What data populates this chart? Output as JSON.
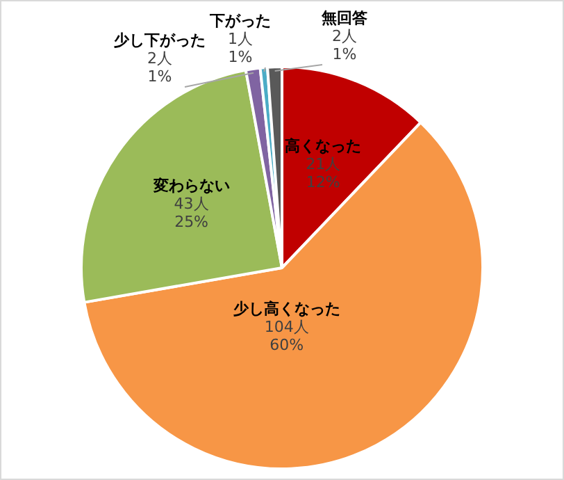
{
  "chart_data": {
    "type": "pie",
    "categories": [
      "高くなった",
      "少し高くなった",
      "変わらない",
      "少し下がった",
      "下がった",
      "無回答"
    ],
    "values": [
      21,
      104,
      43,
      2,
      1,
      2
    ],
    "colors": [
      "#c00000",
      "#f79646",
      "#9bbb59",
      "#8064a2",
      "#4bacc6",
      "#595959"
    ],
    "value_labels": [
      "21人\n12%",
      "104人\n60%",
      "43人\n25%",
      "2人\n1%",
      "1人\n1%",
      "2人\n1%"
    ],
    "legend": false
  }
}
